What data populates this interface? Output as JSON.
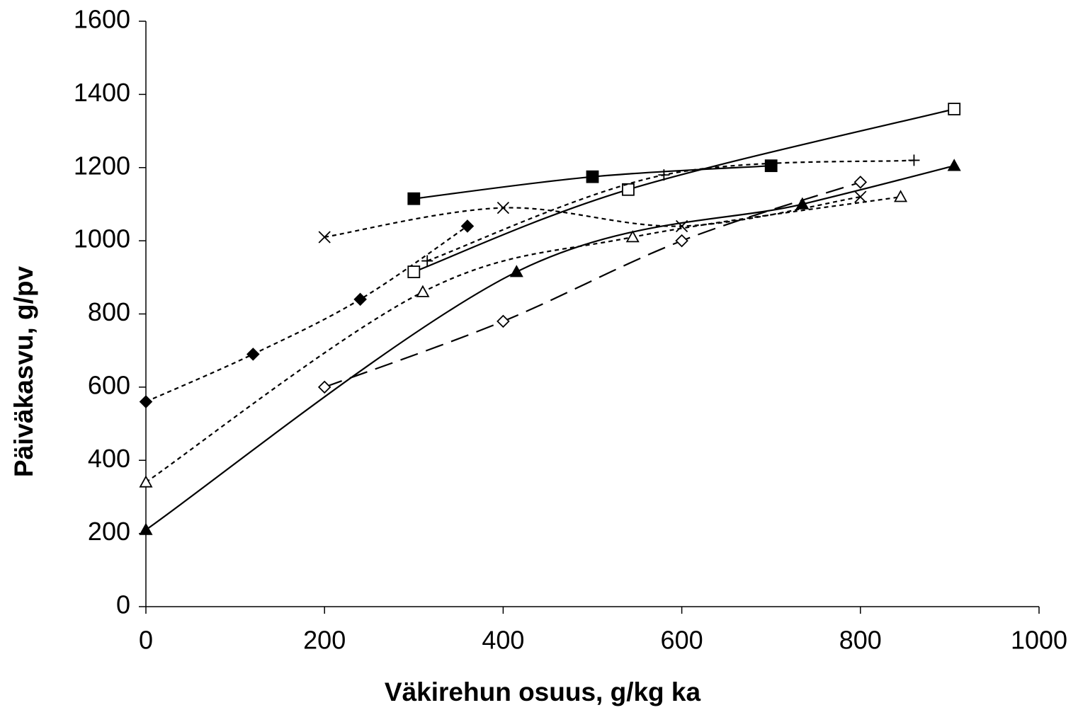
{
  "chart_data": {
    "type": "line",
    "smooth": true,
    "x_label": "Väkirehun osuus, g/kg ka",
    "y_label": "Päiväkasvu, g/pv",
    "xlim": [
      0,
      1000
    ],
    "xticks": [
      0,
      200,
      400,
      600,
      800,
      1000
    ],
    "ylim": [
      0,
      1600
    ],
    "yticks": [
      0,
      200,
      400,
      600,
      800,
      1000,
      1200,
      1400,
      1600
    ],
    "grid": false,
    "series": [
      {
        "color": "#000000",
        "marker": "diamond",
        "filled": true,
        "dash": "short",
        "x": [
          0,
          120,
          240,
          360
        ],
        "values": [
          560,
          690,
          840,
          1040
        ]
      },
      {
        "color": "#000000",
        "marker": "triangle",
        "filled": false,
        "dash": "short",
        "x": [
          0,
          310,
          545,
          845
        ],
        "values": [
          340,
          860,
          1010,
          1120
        ]
      },
      {
        "color": "#000000",
        "marker": "triangle",
        "filled": true,
        "dash": "solid",
        "x": [
          0,
          415,
          735,
          905
        ],
        "values": [
          210,
          915,
          1100,
          1205
        ]
      },
      {
        "color": "#000000",
        "marker": "diamond",
        "filled": false,
        "dash": "long",
        "x": [
          200,
          400,
          600,
          800
        ],
        "values": [
          600,
          780,
          1000,
          1160
        ]
      },
      {
        "color": "#000000",
        "marker": "cross",
        "filled": false,
        "dash": "short",
        "x": [
          200,
          400,
          600,
          800
        ],
        "values": [
          1010,
          1090,
          1040,
          1120
        ]
      },
      {
        "color": "#000000",
        "marker": "square",
        "filled": true,
        "dash": "solid",
        "x": [
          300,
          500,
          700
        ],
        "values": [
          1115,
          1175,
          1205
        ]
      },
      {
        "color": "#000000",
        "marker": "square",
        "filled": false,
        "dash": "solid",
        "x": [
          300,
          540,
          905
        ],
        "values": [
          915,
          1140,
          1360
        ]
      },
      {
        "color": "#000000",
        "marker": "plus",
        "filled": false,
        "dash": "short",
        "x": [
          315,
          580,
          860
        ],
        "values": [
          945,
          1180,
          1220
        ]
      }
    ]
  }
}
